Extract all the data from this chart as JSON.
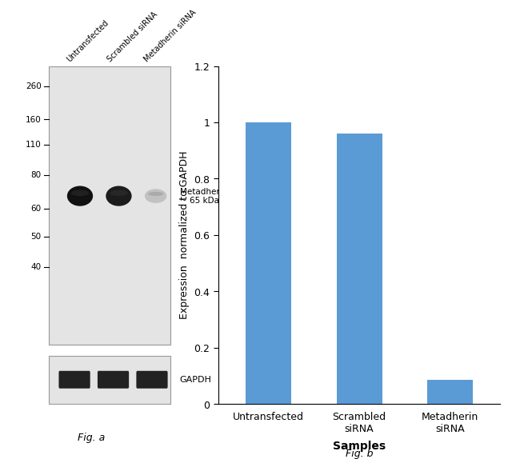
{
  "fig_width": 6.41,
  "fig_height": 5.87,
  "background_color": "#ffffff",
  "bar_categories": [
    "Untransfected",
    "Scrambled\nsiRNA",
    "Metadherin\nsiRNA"
  ],
  "bar_values": [
    1.0,
    0.96,
    0.085
  ],
  "bar_color": "#5B9BD5",
  "bar_width": 0.5,
  "ylabel": "Expression  normalized to GAPDH",
  "xlabel": "Samples",
  "ylim": [
    0,
    1.2
  ],
  "yticks": [
    0,
    0.2,
    0.4,
    0.6,
    0.8,
    1.0,
    1.2
  ],
  "wb_mw_labels": [
    "260",
    "160",
    "110",
    "80",
    "60",
    "50",
    "40"
  ],
  "wb_mw_positions_norm": [
    0.93,
    0.81,
    0.72,
    0.61,
    0.49,
    0.39,
    0.28
  ],
  "wb_col_labels": [
    "Untransfected",
    "Scrambled siRNA",
    "Metadherin siRNA"
  ],
  "metadherin_label": "Metadherin\n~ 65 kDa",
  "gapdh_label": "GAPDH",
  "fig_a_label": "Fig. a",
  "fig_b_label": "Fig. b",
  "gel_bg_color": "#e4e4e4",
  "gel_border_color": "#999999",
  "band_main_color": "#1a1a1a",
  "band_weak_color": "#888888",
  "gapdh_band_color": "#222222"
}
